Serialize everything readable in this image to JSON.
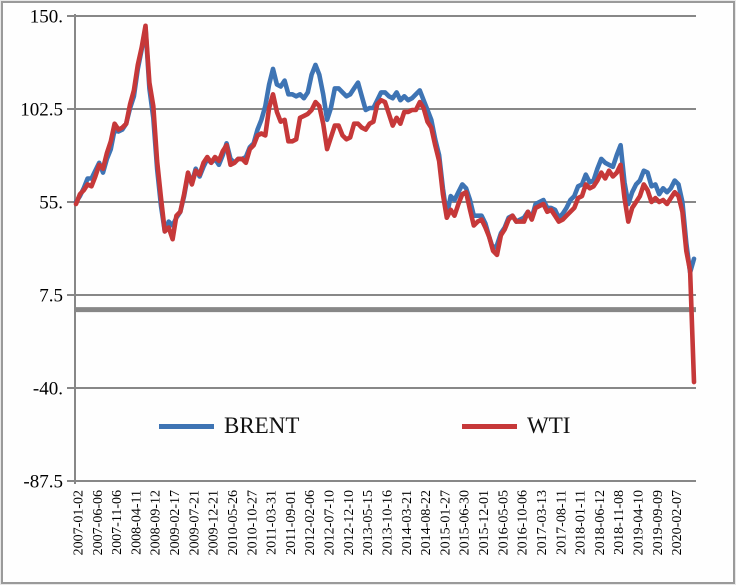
{
  "window": {
    "background": "#FEFEFE",
    "border_color": "#9A9A9A"
  },
  "chart_data": {
    "type": "line",
    "title": "",
    "xlabel": "",
    "ylabel": "",
    "grid": "horizontal",
    "grid_color": "#878787",
    "axis_color": "#878787",
    "reference_line_y": 0,
    "y_axis": {
      "range": [
        -87.5,
        150
      ],
      "tick_values": [
        150,
        102.5,
        55,
        7.5,
        -40,
        -87.5
      ],
      "tick_labels": [
        "150.",
        "102.5",
        "55.",
        "7.5",
        "-40.",
        "-87.5"
      ]
    },
    "x_axis": {
      "ticks_every_n_points": 5,
      "tick_labels": [
        "2007-01-02",
        "2007-06-06",
        "2007-11-06",
        "2008-04-11",
        "2008-09-12",
        "2009-02-17",
        "2009-07-21",
        "2009-12-21",
        "2010-05-26",
        "2010-10-27",
        "2011-03-31",
        "2011-09-01",
        "2012-02-06",
        "2012-07-10",
        "2012-12-10",
        "2013-05-15",
        "2013-10-16",
        "2014-03-21",
        "2014-08-22",
        "2015-01-27",
        "2015-06-30",
        "2015-12-01",
        "2016-05-05",
        "2016-10-06",
        "2017-03-13",
        "2017-08-11",
        "2018-01-11",
        "2018-06-12",
        "2018-11-08",
        "2019-04-10",
        "2019-09-09",
        "2020-02-07"
      ]
    },
    "legend": {
      "position": "inside-bottom",
      "entries": [
        "BRENT",
        "WTI"
      ]
    },
    "series": [
      {
        "name": "BRENT",
        "color": "#3E74B4",
        "values": [
          55,
          58,
          62,
          67,
          67,
          71,
          75,
          70,
          77,
          82,
          92,
          91,
          92,
          95,
          103,
          109,
          123,
          133,
          144,
          113,
          98,
          72,
          53,
          40,
          45,
          43,
          47,
          50,
          58,
          69,
          65,
          72,
          68,
          73,
          77,
          75,
          77,
          74,
          79,
          85,
          77,
          75,
          77,
          77,
          78,
          83,
          85,
          92,
          97,
          104,
          115,
          123,
          115,
          114,
          117,
          110,
          110,
          109,
          110,
          108,
          111,
          120,
          125,
          120,
          110,
          97,
          103,
          113,
          113,
          111,
          109,
          110,
          113,
          116,
          109,
          102,
          103,
          103,
          107,
          111,
          111,
          109,
          108,
          111,
          107,
          109,
          107,
          108,
          110,
          112,
          107,
          102,
          97,
          87,
          79,
          62,
          48,
          58,
          56,
          60,
          64,
          62,
          56,
          48,
          48,
          48,
          44,
          37,
          31,
          33,
          39,
          42,
          47,
          48,
          45,
          46,
          47,
          50,
          47,
          54,
          55,
          56,
          52,
          52,
          51,
          47,
          49,
          52,
          56,
          58,
          63,
          64,
          69,
          65,
          66,
          72,
          77,
          75,
          74,
          73,
          79,
          84,
          65,
          54,
          60,
          64,
          66,
          71,
          70,
          63,
          64,
          59,
          62,
          60,
          62,
          66,
          64,
          55,
          34,
          19,
          26
        ]
      },
      {
        "name": "WTI",
        "color": "#C63839",
        "values": [
          54,
          59,
          61,
          64,
          63,
          68,
          74,
          72,
          80,
          86,
          95,
          92,
          93,
          95,
          105,
          112,
          125,
          134,
          145,
          116,
          104,
          76,
          57,
          40,
          42,
          36,
          48,
          50,
          59,
          70,
          64,
          71,
          69,
          75,
          78,
          75,
          78,
          76,
          81,
          84,
          74,
          75,
          77,
          77,
          75,
          82,
          84,
          89,
          90,
          89,
          103,
          110,
          101,
          96,
          97,
          86,
          86,
          87,
          98,
          99,
          100,
          102,
          106,
          104,
          95,
          82,
          88,
          94,
          94,
          89,
          87,
          88,
          95,
          95,
          93,
          92,
          95,
          96,
          105,
          107,
          106,
          100,
          94,
          98,
          95,
          101,
          101,
          102,
          102,
          106,
          103,
          96,
          93,
          84,
          76,
          59,
          47,
          51,
          48,
          54,
          59,
          60,
          51,
          43,
          45,
          46,
          42,
          37,
          30,
          28,
          38,
          41,
          46,
          48,
          45,
          45,
          45,
          50,
          46,
          52,
          53,
          54,
          50,
          51,
          48,
          45,
          46,
          48,
          50,
          52,
          57,
          58,
          64,
          62,
          63,
          66,
          70,
          67,
          71,
          68,
          70,
          74,
          57,
          45,
          52,
          55,
          58,
          64,
          61,
          55,
          57,
          55,
          56,
          54,
          57,
          60,
          58,
          50,
          30,
          20,
          -37
        ]
      }
    ]
  }
}
